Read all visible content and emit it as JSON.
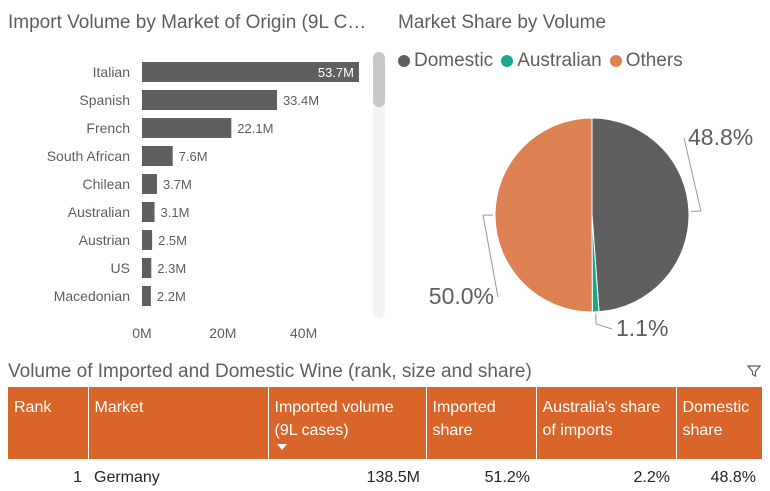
{
  "bar_chart": {
    "title": "Import Volume by Market of Origin (9L C…",
    "x_ticks": [
      "0M",
      "20M",
      "40M"
    ]
  },
  "pie_chart": {
    "title": "Market Share by Volume"
  },
  "table_title": "Volume of Imported and Domestic Wine (rank, size and share)",
  "table": {
    "headers": [
      "Rank",
      "Market",
      "Imported volume (9L cases)",
      "Imported share",
      "Australia's share of imports",
      "Domestic share"
    ],
    "rows": [
      {
        "rank": "1",
        "market": "Germany",
        "imported_volume": "138.5M",
        "imported_share": "51.2%",
        "australia_share": "2.2%",
        "domestic_share": "48.8%"
      }
    ]
  },
  "icons": {
    "filter": "filter-icon",
    "sort": "sort-descending-icon"
  },
  "colors": {
    "bar": "#5f5f5f",
    "domestic": "#5f5f5f",
    "australian": "#1aa989",
    "others": "#dd8152",
    "header": "#d9652a"
  },
  "chart_data": [
    {
      "type": "bar",
      "orientation": "horizontal",
      "title": "Import Volume by Market of Origin (9L C…",
      "categories": [
        "Italian",
        "Spanish",
        "French",
        "South African",
        "Chilean",
        "Australian",
        "Austrian",
        "US",
        "Macedonian"
      ],
      "values": [
        53.7,
        33.4,
        22.1,
        7.6,
        3.7,
        3.1,
        2.5,
        2.3,
        2.2
      ],
      "labels": [
        "53.7M",
        "33.4M",
        "22.1M",
        "7.6M",
        "3.7M",
        "3.1M",
        "2.5M",
        "2.3M",
        "2.2M"
      ],
      "xlim": [
        0,
        53.7
      ],
      "x_ticks": [
        "0M",
        "20M",
        "40M"
      ]
    },
    {
      "type": "pie",
      "title": "Market Share by Volume",
      "slices": [
        {
          "name": "Domestic",
          "value": 48.8,
          "label": "48.8%",
          "color": "#5f5f5f"
        },
        {
          "name": "Australian",
          "value": 1.1,
          "label": "1.1%",
          "color": "#1aa989"
        },
        {
          "name": "Others",
          "value": 50.0,
          "label": "50.0%",
          "color": "#dd8152"
        }
      ],
      "legend_position": "top-left"
    }
  ]
}
